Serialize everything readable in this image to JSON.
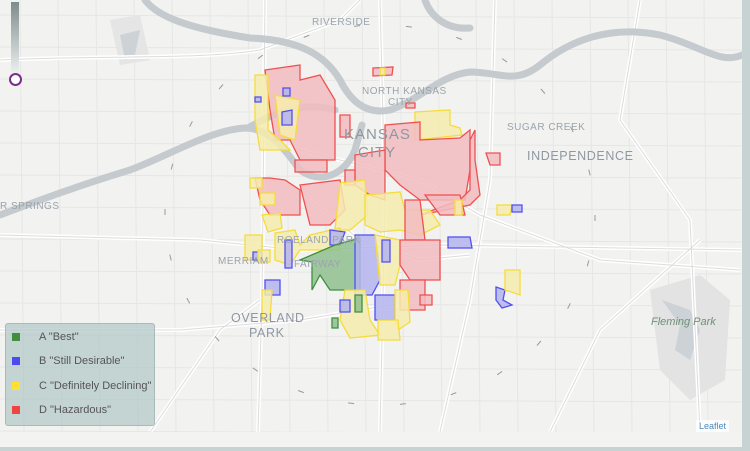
{
  "map": {
    "place_labels": {
      "riverside": "RIVERSIDE",
      "north_kansas_city_1": "NORTH KANSAS",
      "north_kansas_city_2": "CITY",
      "kansas_city_1": "KANSAS",
      "kansas_city_2": "CITY",
      "sugar_creek": "SUGAR CREEK",
      "independence": "INDEPENDENCE",
      "springs": "R SPRINGS",
      "merriam": "MERRIAM",
      "roeland_park": "ROELAND PARK",
      "fairway": "FAIRWAY",
      "overland_park_1": "OVERLAND",
      "overland_park_2": "PARK",
      "fleming_park": "Fleming Park"
    },
    "attribution": "Leaflet",
    "opacity_slider": {
      "value": 1.0,
      "knob_color": "#7b2d8e"
    }
  },
  "legend": {
    "items": [
      {
        "grade": "A",
        "label": "A \"Best\"",
        "color": "#3f8f3f"
      },
      {
        "grade": "B",
        "label": "B \"Still Desirable\"",
        "color": "#4b4bef"
      },
      {
        "grade": "C",
        "label": "C \"Definitely Declining\"",
        "color": "#ffe033"
      },
      {
        "grade": "D",
        "label": "D \"Hazardous\"",
        "color": "#ee4444"
      }
    ]
  },
  "colors": {
    "A": {
      "stroke": "#3f8f3f",
      "fill": "#8fbf8f"
    },
    "B": {
      "stroke": "#5050f0",
      "fill": "#b4b4ee"
    },
    "C": {
      "stroke": "#f5dc3a",
      "fill": "#f6ecae"
    },
    "D": {
      "stroke": "#ef5050",
      "fill": "#f2bcc0"
    }
  }
}
